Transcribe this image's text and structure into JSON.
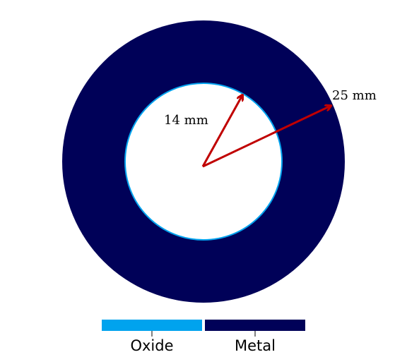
{
  "diagram": {
    "inner_radius_label": "14 mm",
    "outer_radius_label": "25 mm",
    "colors": {
      "metal": "#000158",
      "oxide": "#00a3ee",
      "arrow": "#c00000",
      "hole": "#ffffff"
    }
  },
  "legend": {
    "items": [
      {
        "label": "Oxide",
        "color": "#00a3ee"
      },
      {
        "label": "Metal",
        "color": "#000158"
      }
    ]
  }
}
